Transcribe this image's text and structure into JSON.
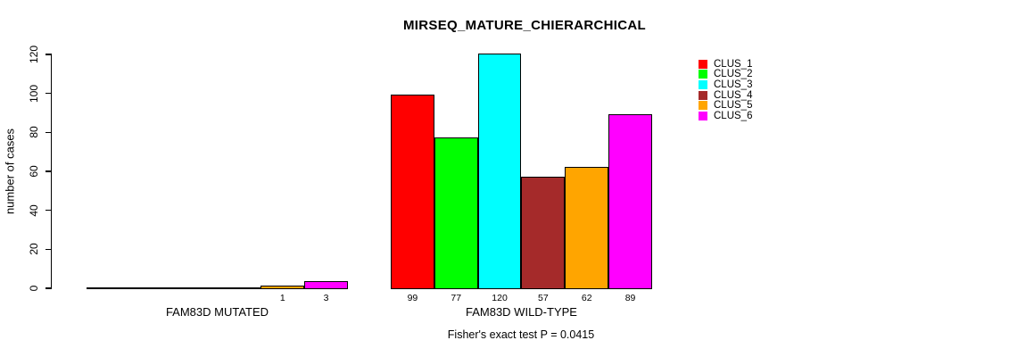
{
  "chart_data": {
    "type": "bar",
    "title": "MIRSEQ_MATURE_CHIERARCHICAL",
    "ylabel": "number of cases",
    "ylim": [
      0,
      120
    ],
    "yticks": [
      0,
      20,
      40,
      60,
      80,
      100,
      120
    ],
    "grid": false,
    "legend_position": "top-right",
    "clusters": [
      {
        "name": "CLUS_1",
        "color": "#FF0000"
      },
      {
        "name": "CLUS_2",
        "color": "#00FF00"
      },
      {
        "name": "CLUS_3",
        "color": "#00FFFF"
      },
      {
        "name": "CLUS_4",
        "color": "#A52A2A"
      },
      {
        "name": "CLUS_5",
        "color": "#FFA500"
      },
      {
        "name": "CLUS_6",
        "color": "#FF00FF"
      }
    ],
    "groups": [
      {
        "label": "FAM83D MUTATED",
        "values": [
          0,
          0,
          0,
          0,
          1,
          3
        ],
        "value_labels": [
          "",
          "",
          "",
          "",
          "1",
          "3"
        ]
      },
      {
        "label": "FAM83D WILD-TYPE",
        "values": [
          99,
          77,
          120,
          57,
          62,
          89
        ],
        "value_labels": [
          "99",
          "77",
          "120",
          "57",
          "62",
          "89"
        ]
      }
    ],
    "annotation": "Fisher's exact test P = 0.0415"
  }
}
